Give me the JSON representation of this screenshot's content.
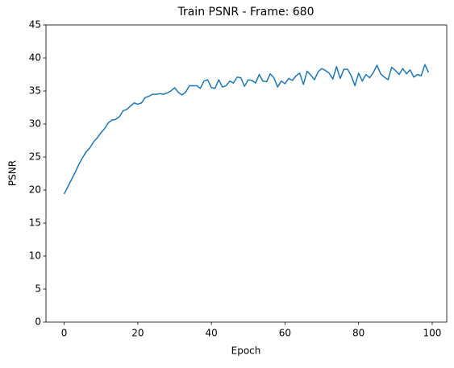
{
  "chart_data": {
    "type": "line",
    "title": "Train PSNR - Frame: 680",
    "x_label": "Epoch",
    "y_label": "PSNR",
    "x": [
      0,
      1,
      2,
      3,
      4,
      5,
      6,
      7,
      8,
      9,
      10,
      11,
      12,
      13,
      14,
      15,
      16,
      17,
      18,
      19,
      20,
      21,
      22,
      23,
      24,
      25,
      26,
      27,
      28,
      29,
      30,
      31,
      32,
      33,
      34,
      35,
      36,
      37,
      38,
      39,
      40,
      41,
      42,
      43,
      44,
      45,
      46,
      47,
      48,
      49,
      50,
      51,
      52,
      53,
      54,
      55,
      56,
      57,
      58,
      59,
      60,
      61,
      62,
      63,
      64,
      65,
      66,
      67,
      68,
      69,
      70,
      71,
      72,
      73,
      74,
      75,
      76,
      77,
      78,
      79,
      80,
      81,
      82,
      83,
      84,
      85,
      86,
      87,
      88,
      89,
      90,
      91,
      92,
      93,
      94,
      95,
      96,
      97,
      98,
      99
    ],
    "series": [
      {
        "name": "PSNR",
        "color": "#1f77b4",
        "values": [
          19.4,
          20.5,
          21.6,
          22.7,
          23.9,
          24.9,
          25.8,
          26.4,
          27.3,
          27.9,
          28.7,
          29.3,
          30.2,
          30.6,
          30.7,
          31.1,
          32.0,
          32.2,
          32.7,
          33.2,
          33.0,
          33.2,
          34.0,
          34.2,
          34.5,
          34.5,
          34.6,
          34.5,
          34.7,
          35.0,
          35.5,
          34.8,
          34.4,
          34.8,
          35.8,
          35.8,
          35.8,
          35.4,
          36.5,
          36.7,
          35.5,
          35.4,
          36.7,
          35.6,
          35.8,
          36.5,
          36.2,
          37.1,
          37.0,
          35.7,
          36.7,
          36.6,
          36.2,
          37.5,
          36.5,
          36.4,
          37.6,
          37.0,
          35.6,
          36.5,
          36.1,
          36.9,
          36.6,
          37.3,
          37.7,
          36.0,
          38.0,
          37.4,
          36.7,
          37.9,
          38.4,
          38.1,
          37.7,
          36.8,
          38.7,
          36.9,
          38.3,
          38.3,
          37.3,
          35.8,
          37.7,
          36.5,
          37.5,
          37.0,
          37.8,
          38.9,
          37.6,
          37.1,
          36.7,
          38.6,
          38.1,
          37.5,
          38.4,
          37.6,
          38.2,
          37.1,
          37.5,
          37.3,
          39.0,
          37.8
        ]
      }
    ],
    "xlim": [
      -4.95,
      103.95
    ],
    "xticks": [
      0,
      20,
      40,
      60,
      80,
      100
    ],
    "ylim": [
      0,
      45
    ],
    "yticks": [
      0,
      5,
      10,
      15,
      20,
      25,
      30,
      35,
      40,
      45
    ],
    "grid": false
  }
}
